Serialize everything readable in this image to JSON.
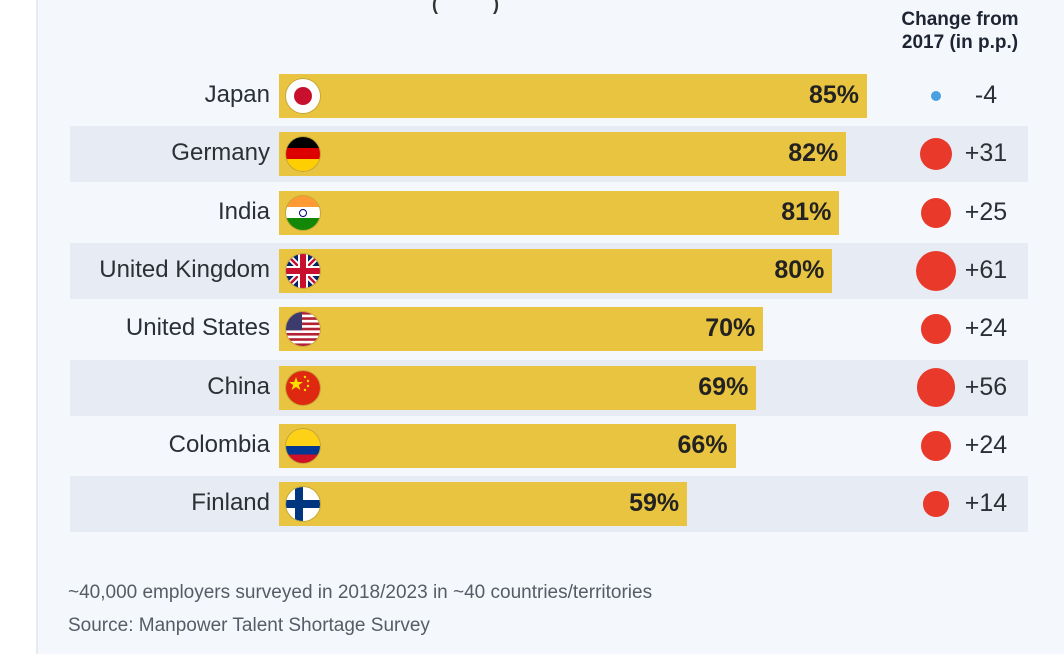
{
  "column_header": "Change from 2017 (in p.p.)",
  "column_header_lines": [
    "Change from",
    "2017 (in p.p.)"
  ],
  "colors": {
    "bar": "#e8c440",
    "dot_negative": "#4a9fe0",
    "dot_positive": "#e8392a",
    "band": "#e7ecf4"
  },
  "chart_data": {
    "type": "bar",
    "orientation": "horizontal",
    "categories": [
      "Japan",
      "Germany",
      "India",
      "United Kingdom",
      "United States",
      "China",
      "Colombia",
      "Finland"
    ],
    "values": [
      85,
      82,
      81,
      80,
      70,
      69,
      66,
      59
    ],
    "value_labels": [
      "85%",
      "82%",
      "81%",
      "80%",
      "70%",
      "69%",
      "66%",
      "59%"
    ],
    "value_unit": "%",
    "xlim": [
      0,
      100
    ],
    "change_from_2017": [
      -4,
      31,
      25,
      61,
      24,
      56,
      24,
      14
    ],
    "change_labels": [
      "-4",
      "+31",
      "+25",
      "+61",
      "+24",
      "+56",
      "+24",
      "+14"
    ],
    "flag_icons": [
      "japan-flag-icon",
      "germany-flag-icon",
      "india-flag-icon",
      "united-kingdom-flag-icon",
      "united-states-flag-icon",
      "china-flag-icon",
      "colombia-flag-icon",
      "finland-flag-icon"
    ]
  },
  "footnotes": {
    "survey": "~40,000 employers surveyed in 2018/2023 in ~40 countries/territories",
    "source": "Source: Manpower Talent Shortage Survey"
  }
}
